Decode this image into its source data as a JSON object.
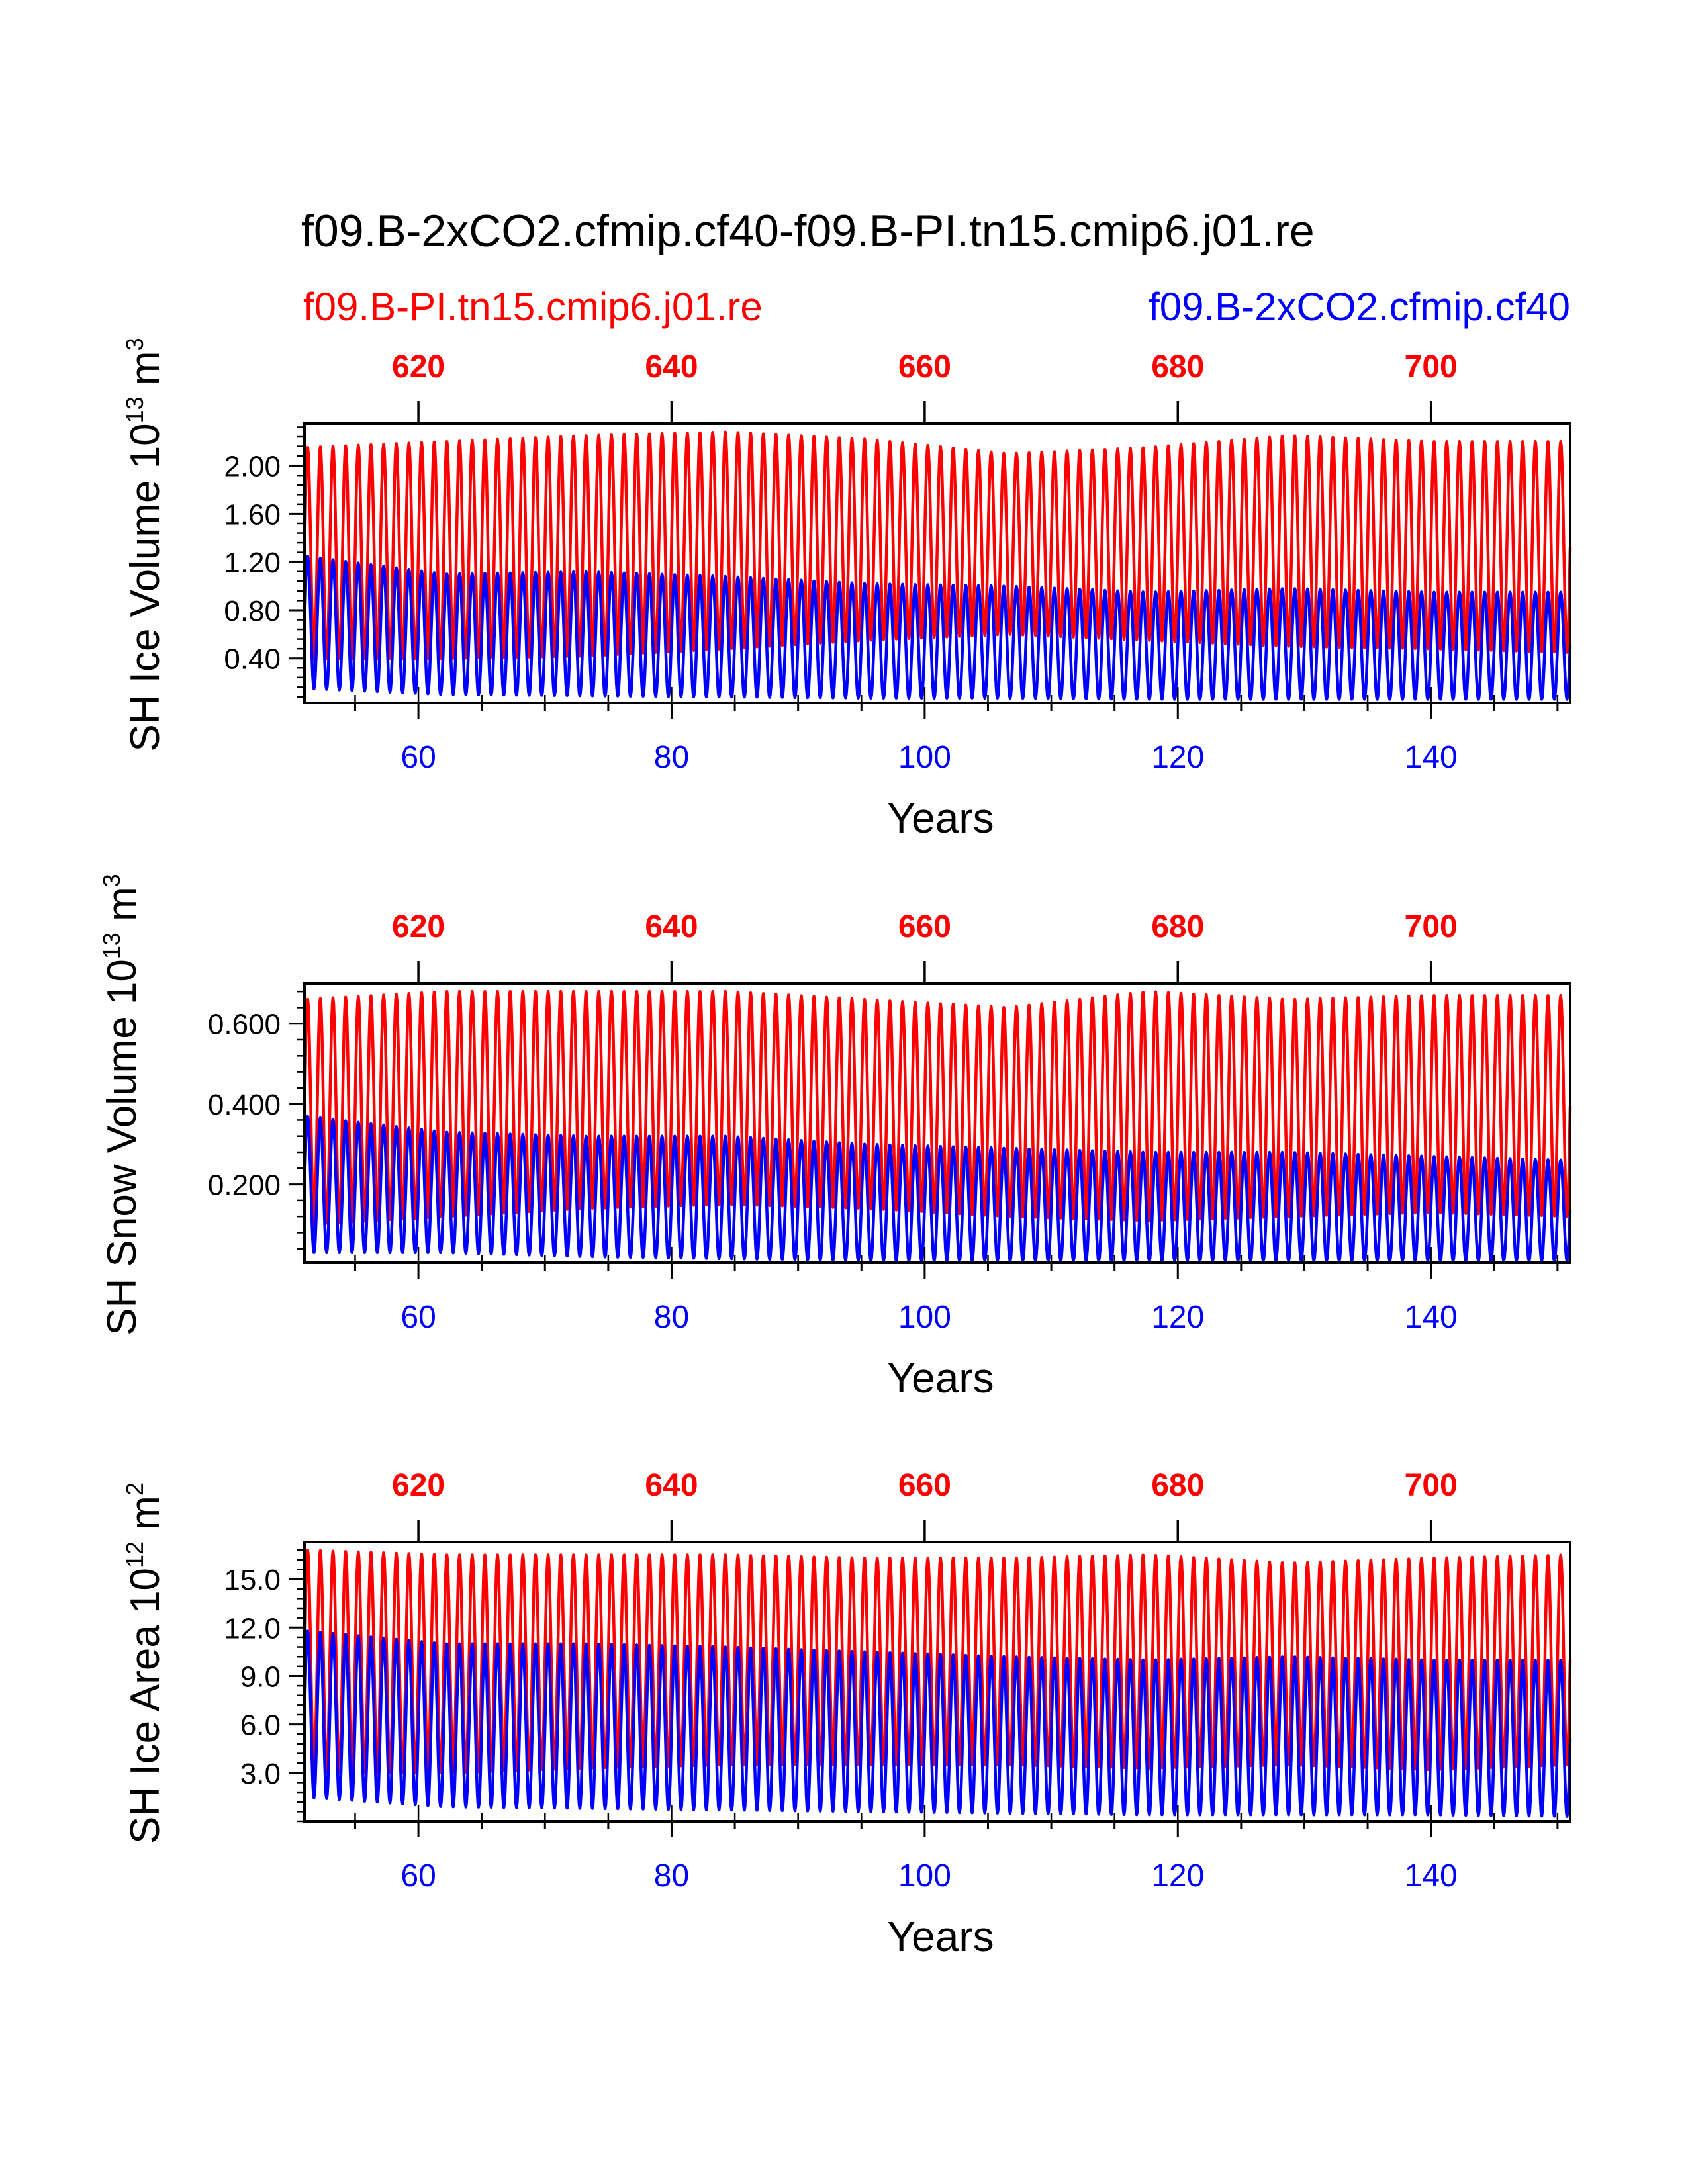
{
  "figure": {
    "title": "f09.B-2xCO2.cfmip.cf40-f09.B-PI.tn15.cmip6.j01.re",
    "legend": {
      "red": "f09.B-PI.tn15.cmip6.j01.re",
      "blue": "f09.B-2xCO2.cfmip.cf40"
    },
    "colors": {
      "red": "#ff0000",
      "blue": "#0000ff",
      "axis": "#000000"
    }
  },
  "chart_data": [
    {
      "type": "line",
      "ylabel_main": "SH Ice Volume 10",
      "ylabel_exp": "13",
      "ylabel_unit": " m",
      "ylabel_unit_exp": "3",
      "xlabel": "Years",
      "xlim": [
        51,
        151
      ],
      "ylim": [
        0.03,
        2.35
      ],
      "yticks": [
        0.4,
        0.8,
        1.2,
        1.6,
        2.0
      ],
      "ytick_labels": [
        "0.40",
        "0.80",
        "1.20",
        "1.60",
        "2.00"
      ],
      "ytick_minor_step": 0.08,
      "xticks_bottom": [
        60,
        80,
        100,
        120,
        140
      ],
      "xticks_bottom_labels": [
        "60",
        "80",
        "100",
        "120",
        "140"
      ],
      "xticks_top": [
        620,
        640,
        660,
        680,
        700
      ],
      "xticks_top_labels": [
        "620",
        "640",
        "660",
        "680",
        "700"
      ],
      "top_axis_offset": 560,
      "series": [
        {
          "name": "f09.B-PI.tn15.cmip6.j01.re",
          "color": "red",
          "min": [
            0.4,
            0.4,
            0.42,
            0.48,
            0.55,
            0.6,
            0.55,
            0.5,
            0.48,
            0.45
          ],
          "max": [
            2.15,
            2.2,
            2.25,
            2.28,
            2.22,
            2.1,
            2.15,
            2.25,
            2.2,
            2.2
          ]
        },
        {
          "name": "f09.B-2xCO2.cfmip.cf40",
          "color": "blue",
          "min": [
            0.15,
            0.1,
            0.09,
            0.08,
            0.07,
            0.07,
            0.06,
            0.06,
            0.06,
            0.06
          ],
          "max": [
            1.25,
            1.1,
            1.12,
            1.08,
            1.02,
            1.0,
            0.95,
            0.98,
            0.95,
            0.95
          ]
        }
      ]
    },
    {
      "type": "line",
      "ylabel_main": "SH Snow Volume 10",
      "ylabel_exp": "13",
      "ylabel_unit": " m",
      "ylabel_unit_exp": "3",
      "xlabel": "Years",
      "xlim": [
        51,
        151
      ],
      "ylim": [
        0.005,
        0.7
      ],
      "yticks": [
        0.2,
        0.4,
        0.6
      ],
      "ytick_labels": [
        "0.200",
        "0.400",
        "0.600"
      ],
      "ytick_minor_step": 0.04,
      "xticks_bottom": [
        60,
        80,
        100,
        120,
        140
      ],
      "xticks_bottom_labels": [
        "60",
        "80",
        "100",
        "120",
        "140"
      ],
      "xticks_top": [
        620,
        640,
        660,
        680,
        700
      ],
      "xticks_top_labels": [
        "620",
        "640",
        "660",
        "680",
        "700"
      ],
      "top_axis_offset": 560,
      "series": [
        {
          "name": "f09.B-PI.tn15.cmip6.j01.re",
          "color": "red",
          "min": [
            0.1,
            0.12,
            0.14,
            0.15,
            0.14,
            0.12,
            0.11,
            0.12,
            0.13,
            0.12
          ],
          "max": [
            0.66,
            0.68,
            0.68,
            0.68,
            0.66,
            0.64,
            0.68,
            0.66,
            0.67,
            0.67
          ]
        },
        {
          "name": "f09.B-2xCO2.cfmip.cf40",
          "color": "blue",
          "min": [
            0.03,
            0.03,
            0.02,
            0.015,
            0.01,
            0.01,
            0.01,
            0.01,
            0.01,
            0.01
          ],
          "max": [
            0.37,
            0.33,
            0.32,
            0.32,
            0.3,
            0.29,
            0.28,
            0.28,
            0.27,
            0.26
          ]
        }
      ]
    },
    {
      "type": "line",
      "ylabel_main": "SH Ice Area 10",
      "ylabel_exp": "12",
      "ylabel_unit": " m",
      "ylabel_unit_exp": "2",
      "xlabel": "Years",
      "xlim": [
        51,
        151
      ],
      "ylim": [
        0.0,
        17.3
      ],
      "yticks": [
        3.0,
        6.0,
        9.0,
        12.0,
        15.0
      ],
      "ytick_labels": [
        "3.0",
        "6.0",
        "9.0",
        "12.0",
        "15.0"
      ],
      "ytick_minor_step": 0.6,
      "xticks_bottom": [
        60,
        80,
        100,
        120,
        140
      ],
      "xticks_bottom_labels": [
        "60",
        "80",
        "100",
        "120",
        "140"
      ],
      "xticks_top": [
        620,
        640,
        660,
        680,
        700
      ],
      "xticks_top_labels": [
        "620",
        "640",
        "660",
        "680",
        "700"
      ],
      "top_axis_offset": 560,
      "series": [
        {
          "name": "f09.B-PI.tn15.cmip6.j01.re",
          "color": "red",
          "min": [
            3.0,
            3.0,
            3.3,
            3.5,
            3.5,
            3.5,
            3.3,
            3.5,
            3.2,
            3.5
          ],
          "max": [
            16.8,
            16.5,
            16.5,
            16.5,
            16.3,
            16.3,
            16.5,
            16.0,
            16.3,
            16.5
          ]
        },
        {
          "name": "f09.B-2xCO2.cfmip.cf40",
          "color": "blue",
          "min": [
            1.5,
            0.9,
            0.8,
            0.7,
            0.6,
            0.5,
            0.4,
            0.4,
            0.4,
            0.3
          ],
          "max": [
            11.8,
            11.0,
            11.0,
            10.8,
            10.5,
            10.2,
            10.0,
            10.2,
            10.0,
            10.0
          ]
        }
      ]
    }
  ]
}
